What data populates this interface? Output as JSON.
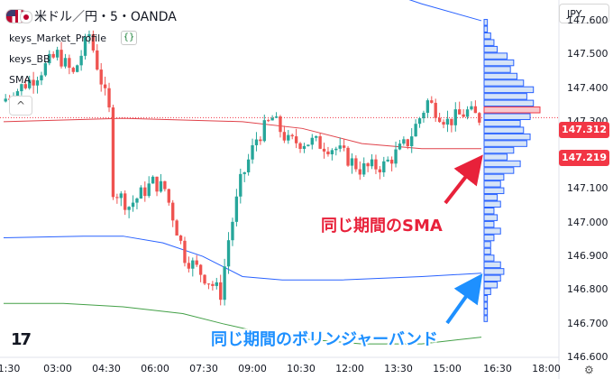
{
  "header": {
    "title": "米ドル／円・5・OANDA",
    "currency": "JPY",
    "indicators": [
      "keys_Market_Profile",
      "keys_BB",
      "SMA"
    ],
    "indicator_tag": "{}",
    "collapse_glyph": "^"
  },
  "price_axis": {
    "labels": [
      "147.600",
      "147.500",
      "147.400",
      "147.300",
      "147.200",
      "147.100",
      "147.000",
      "146.900",
      "146.800",
      "146.700",
      "146.600"
    ],
    "current_price": "147.312",
    "sma_value": "147.219",
    "current_color": "#f23645",
    "sma_color": "#f23645"
  },
  "time_axis": {
    "labels": [
      "1:30",
      "03:00",
      "04:30",
      "06:00",
      "07:30",
      "09:00",
      "10:30",
      "12:00",
      "13:30",
      "15:00",
      "16:30",
      "18:00"
    ]
  },
  "annotations": {
    "sma_note": "同じ期間のSMA",
    "bb_note": "同じ期間のボリンジャーバンド",
    "sma_note_color": "#e8213a",
    "bb_note_color": "#1e90ff"
  },
  "chart_data": {
    "type": "candlestick",
    "ylim": [
      146.6,
      147.64
    ],
    "up_color": "#26a69a",
    "down_color": "#ef5350",
    "close_path": [
      [
        0,
        147.36
      ],
      [
        8,
        147.43
      ],
      [
        14,
        147.5
      ],
      [
        18,
        147.44
      ],
      [
        22,
        147.56
      ],
      [
        27,
        147.33
      ],
      [
        28,
        147.1
      ],
      [
        32,
        147.05
      ],
      [
        38,
        147.12
      ],
      [
        41,
        147.1
      ],
      [
        46,
        146.9
      ],
      [
        51,
        146.84
      ],
      [
        55,
        146.79
      ],
      [
        57,
        146.95
      ],
      [
        60,
        147.12
      ],
      [
        64,
        147.25
      ],
      [
        68,
        147.31
      ],
      [
        72,
        147.24
      ],
      [
        78,
        147.24
      ],
      [
        84,
        147.22
      ],
      [
        90,
        147.16
      ],
      [
        96,
        147.17
      ],
      [
        102,
        147.24
      ],
      [
        107,
        147.36
      ],
      [
        112,
        147.3
      ],
      [
        117,
        147.33
      ],
      [
        120,
        147.31
      ]
    ],
    "market_profile": {
      "bar_color": "#d6e4f7",
      "bar_edge": "#2962ff",
      "poc_color": "#f8c8cd",
      "poc_edge": "#f23645",
      "rows": [
        {
          "price": 147.595,
          "vol": 1
        },
        {
          "price": 147.575,
          "vol": 1
        },
        {
          "price": 147.555,
          "vol": 2
        },
        {
          "price": 147.535,
          "vol": 3
        },
        {
          "price": 147.515,
          "vol": 4
        },
        {
          "price": 147.495,
          "vol": 7
        },
        {
          "price": 147.475,
          "vol": 9
        },
        {
          "price": 147.455,
          "vol": 8
        },
        {
          "price": 147.435,
          "vol": 10
        },
        {
          "price": 147.415,
          "vol": 12
        },
        {
          "price": 147.395,
          "vol": 15
        },
        {
          "price": 147.375,
          "vol": 13
        },
        {
          "price": 147.355,
          "vol": 15
        },
        {
          "price": 147.335,
          "vol": 17,
          "poc": true
        },
        {
          "price": 147.315,
          "vol": 14
        },
        {
          "price": 147.295,
          "vol": 11
        },
        {
          "price": 147.275,
          "vol": 12
        },
        {
          "price": 147.255,
          "vol": 14
        },
        {
          "price": 147.235,
          "vol": 13
        },
        {
          "price": 147.215,
          "vol": 9
        },
        {
          "price": 147.195,
          "vol": 7
        },
        {
          "price": 147.175,
          "vol": 11
        },
        {
          "price": 147.155,
          "vol": 9
        },
        {
          "price": 147.135,
          "vol": 6
        },
        {
          "price": 147.115,
          "vol": 5
        },
        {
          "price": 147.095,
          "vol": 6
        },
        {
          "price": 147.075,
          "vol": 4
        },
        {
          "price": 147.055,
          "vol": 5
        },
        {
          "price": 147.035,
          "vol": 3
        },
        {
          "price": 147.015,
          "vol": 4
        },
        {
          "price": 146.995,
          "vol": 3
        },
        {
          "price": 146.975,
          "vol": 5
        },
        {
          "price": 146.955,
          "vol": 3
        },
        {
          "price": 146.935,
          "vol": 2
        },
        {
          "price": 146.915,
          "vol": 2
        },
        {
          "price": 146.895,
          "vol": 3
        },
        {
          "price": 146.875,
          "vol": 5
        },
        {
          "price": 146.855,
          "vol": 6
        },
        {
          "price": 146.835,
          "vol": 5
        },
        {
          "price": 146.815,
          "vol": 4
        },
        {
          "price": 146.795,
          "vol": 2
        },
        {
          "price": 146.775,
          "vol": 1
        },
        {
          "price": 146.755,
          "vol": 1
        },
        {
          "price": 146.735,
          "vol": 1
        },
        {
          "price": 146.715,
          "vol": 1
        }
      ]
    },
    "sma_line": {
      "color": "#e0424a",
      "points": [
        [
          0,
          147.3
        ],
        [
          15,
          147.305
        ],
        [
          30,
          147.31
        ],
        [
          45,
          147.305
        ],
        [
          60,
          147.3
        ],
        [
          75,
          147.28
        ],
        [
          90,
          147.235
        ],
        [
          105,
          147.22
        ],
        [
          120,
          147.22
        ]
      ]
    },
    "bb_upper": {
      "color": "#2962ff",
      "points": [
        [
          0,
          147.77
        ],
        [
          20,
          147.77
        ],
        [
          40,
          147.74
        ],
        [
          60,
          147.73
        ],
        [
          75,
          147.73
        ],
        [
          90,
          147.71
        ],
        [
          105,
          147.65
        ],
        [
          120,
          147.6
        ]
      ]
    },
    "bb_lower": {
      "color": "#2962ff",
      "points": [
        [
          0,
          146.955
        ],
        [
          20,
          146.96
        ],
        [
          30,
          146.96
        ],
        [
          40,
          146.94
        ],
        [
          50,
          146.9
        ],
        [
          60,
          146.84
        ],
        [
          70,
          146.83
        ],
        [
          85,
          146.83
        ],
        [
          105,
          146.84
        ],
        [
          120,
          146.85
        ]
      ]
    },
    "outer_lower": {
      "color": "#43a047",
      "points": [
        [
          0,
          146.76
        ],
        [
          15,
          146.76
        ],
        [
          30,
          146.75
        ],
        [
          45,
          146.73
        ],
        [
          55,
          146.7
        ],
        [
          70,
          146.66
        ],
        [
          90,
          146.64
        ],
        [
          105,
          146.64
        ],
        [
          120,
          146.66
        ]
      ]
    }
  }
}
